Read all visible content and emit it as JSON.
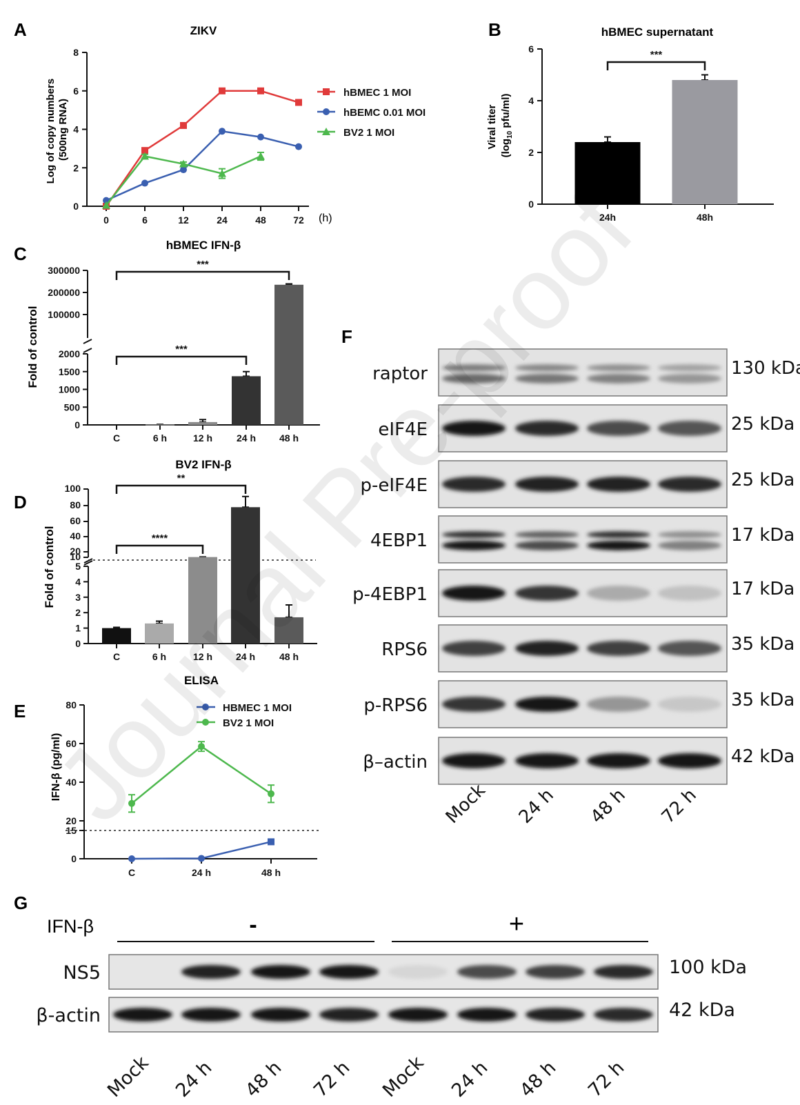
{
  "watermark": "Journal Pre-proof",
  "panels": {
    "A": "A",
    "B": "B",
    "C": "C",
    "D": "D",
    "E": "E",
    "F": "F",
    "G": "G"
  },
  "chart_data": [
    {
      "id": "A",
      "type": "line",
      "title": "ZIKV",
      "ylabel": "Log of copy numbers (500ng RNA)",
      "xlabel": "(h)",
      "x": [
        "0",
        "6",
        "12",
        "24",
        "48",
        "72"
      ],
      "ylim": [
        0,
        8
      ],
      "yticks": [
        "0",
        "2",
        "4",
        "6",
        "8"
      ],
      "legend": "right",
      "series": [
        {
          "name": "hBMEC 1 MOI",
          "color": "#e03a3a",
          "marker": "square",
          "values": [
            0.0,
            2.9,
            4.2,
            6.0,
            6.0,
            5.4
          ]
        },
        {
          "name": "hBEMC  0.01 MOI",
          "color": "#3a5fb0",
          "marker": "circle",
          "values": [
            0.3,
            1.2,
            1.9,
            3.9,
            3.6,
            3.1
          ]
        },
        {
          "name": "BV2 1 MOI",
          "color": "#4db84d",
          "marker": "triangle",
          "values": [
            0.05,
            2.6,
            2.2,
            1.7,
            2.6,
            null
          ],
          "errors": [
            0,
            0.1,
            0.1,
            0.25,
            0.2,
            0
          ]
        }
      ]
    },
    {
      "id": "B",
      "type": "bar",
      "title": "hBMEC supernatant",
      "ylabel_line1": "Viral titer",
      "ylabel_line2a": "(log",
      "ylabel_sub": "10",
      "ylabel_line2b": " pfu/ml)",
      "categories": [
        "24h",
        "48h"
      ],
      "values": [
        2.4,
        4.8
      ],
      "errors": [
        0.2,
        0.2
      ],
      "colors": [
        "#000000",
        "#9a9aa0"
      ],
      "ylim": [
        0,
        6
      ],
      "yticks": [
        "0",
        "2",
        "4",
        "6"
      ],
      "significance": [
        {
          "from": "24h",
          "to": "48h",
          "label": "***"
        }
      ]
    },
    {
      "id": "C",
      "type": "bar",
      "title": "hBMEC IFN-β",
      "ylabel": "Fold of control",
      "categories": [
        "C",
        "6 h",
        "12 h",
        "24 h",
        "48 h"
      ],
      "values": [
        1,
        10,
        80,
        1370,
        235000
      ],
      "errors": [
        0,
        5,
        70,
        130,
        4000
      ],
      "colors": [
        "#111111",
        "#aaaaaa",
        "#8c8c8c",
        "#333333",
        "#5a5a5a"
      ],
      "yticks_low": [
        "0",
        "500",
        "1000",
        "1500",
        "2000"
      ],
      "yticks_high": [
        "100000",
        "200000",
        "300000"
      ],
      "axis_break": true,
      "significance": [
        {
          "from": "C",
          "to": "48 h",
          "label": "***"
        },
        {
          "from": "C",
          "to": "24 h",
          "label": "***"
        }
      ]
    },
    {
      "id": "D",
      "type": "bar",
      "title": "BV2 IFN-β",
      "ylabel": "Fold of control",
      "categories": [
        "C",
        "6 h",
        "12 h",
        "24 h",
        "48 h"
      ],
      "values": [
        1.0,
        1.3,
        10.5,
        78,
        1.7
      ],
      "errors": [
        0.05,
        0.15,
        0.3,
        13,
        0.8
      ],
      "colors": [
        "#111111",
        "#aaaaaa",
        "#8c8c8c",
        "#333333",
        "#5a5a5a"
      ],
      "yticks_low": [
        "0",
        "1",
        "2",
        "3",
        "4",
        "5"
      ],
      "yticks_high": [
        "10",
        "20",
        "40",
        "60",
        "80",
        "100"
      ],
      "axis_break": true,
      "reference_line": 10,
      "significance": [
        {
          "from": "C",
          "to": "24 h",
          "label": "**"
        },
        {
          "from": "C",
          "to": "12 h",
          "label": "****"
        }
      ]
    },
    {
      "id": "E",
      "type": "line",
      "title": "ELISA",
      "ylabel": "IFN-β (pg/ml)",
      "x": [
        "C",
        "24 h",
        "48 h"
      ],
      "yticks": [
        "0",
        "15",
        "20",
        "40",
        "60",
        "80"
      ],
      "reference_line": 15,
      "legend": "top-right",
      "series": [
        {
          "name": "HBMEC 1 MOI",
          "color": "#3a5fb0",
          "marker": "circle",
          "values": [
            0,
            0.2,
            9
          ]
        },
        {
          "name": "BV2 1 MOI",
          "color": "#4db84d",
          "marker": "circle",
          "values": [
            29,
            58.5,
            34
          ],
          "errors": [
            4.5,
            2.5,
            4.5
          ]
        }
      ]
    }
  ],
  "blot_F": {
    "rows": [
      {
        "label": "raptor",
        "kda": "130 kDa",
        "bands": [
          0.55,
          0.5,
          0.45,
          0.35
        ],
        "double": true
      },
      {
        "label": "eIF4E",
        "kda": "25 kDa",
        "bands": [
          0.95,
          0.85,
          0.7,
          0.65
        ]
      },
      {
        "label": "p-eIF4E",
        "kda": "25 kDa",
        "bands": [
          0.85,
          0.9,
          0.9,
          0.85
        ]
      },
      {
        "label": "4EBP1",
        "kda": "17 kDa",
        "bands": [
          0.95,
          0.7,
          0.95,
          0.45
        ],
        "double": true
      },
      {
        "label": "p-4EBP1",
        "kda": "17 kDa",
        "bands": [
          0.95,
          0.8,
          0.25,
          0.15
        ]
      },
      {
        "label": "RPS6",
        "kda": "35 kDa",
        "bands": [
          0.75,
          0.9,
          0.75,
          0.65
        ]
      },
      {
        "label": "p-RPS6",
        "kda": "35 kDa",
        "bands": [
          0.8,
          0.95,
          0.35,
          0.12
        ]
      },
      {
        "label": "β–actin",
        "kda": "42 kDa",
        "bands": [
          0.95,
          0.95,
          0.95,
          0.95
        ]
      }
    ],
    "lanes": [
      "Mock",
      "24 h",
      "48 h",
      "72 h"
    ]
  },
  "blot_G": {
    "treatment_label": "IFN-β",
    "groups": [
      "-",
      "+"
    ],
    "rows": [
      {
        "label": "NS5",
        "kda": "100 kDa",
        "bands": [
          0.0,
          0.9,
          0.95,
          0.95,
          0.05,
          0.7,
          0.75,
          0.85
        ]
      },
      {
        "label": "β-actin",
        "kda": "42 kDa",
        "bands": [
          0.95,
          0.95,
          0.95,
          0.9,
          0.95,
          0.95,
          0.9,
          0.85
        ]
      }
    ],
    "lanes": [
      "Mock",
      "24 h",
      "48 h",
      "72 h",
      "Mock",
      "24 h",
      "48 h",
      "72 h"
    ]
  }
}
